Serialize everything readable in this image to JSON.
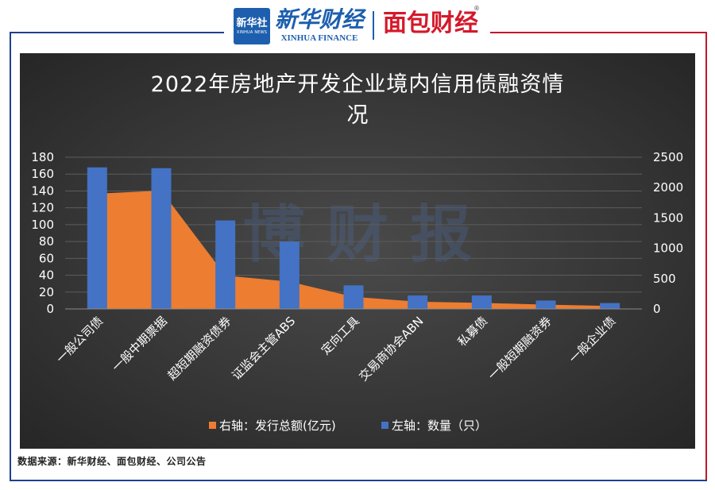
{
  "header": {
    "logo_xinhua": "新华社",
    "logo_xinhua_en": "XINHUA NEWS",
    "brand_cn": "新华财经",
    "brand_en": "XINHUA FINANCE",
    "partner": "面包财经",
    "partner_mark": "®"
  },
  "watermark": "博 财 报",
  "colors": {
    "frame_left": "#1f3f8f",
    "frame_right": "#c0182a",
    "bar": "#4472c4",
    "area": "#ed7d31",
    "panel": "#353535"
  },
  "chart_data": {
    "type": "bar",
    "title_line1": "2022年房地产开发企业境内信用债融资情",
    "title_line2": "况",
    "categories": [
      "一般公司债",
      "一般中期票据",
      "超短期融资债券",
      "证监会主管ABS",
      "定向工具",
      "交易商协会ABN",
      "私募债",
      "一般短期融资券",
      "一般企业债"
    ],
    "series": [
      {
        "name": "左轴：数量（只）",
        "chart": "bar",
        "axis": "left",
        "color": "#4472c4",
        "values": [
          168,
          167,
          105,
          80,
          28,
          16,
          16,
          10,
          7
        ]
      },
      {
        "name": "右轴：发行总额(亿元)",
        "chart": "area",
        "axis": "right",
        "color": "#ed7d31",
        "values": [
          1900,
          1950,
          550,
          450,
          200,
          120,
          100,
          70,
          50
        ]
      }
    ],
    "left_axis": {
      "ylim": [
        0,
        180
      ],
      "ticks": [
        "0",
        "20",
        "40",
        "60",
        "80",
        "100",
        "120",
        "140",
        "160",
        "180"
      ]
    },
    "right_axis": {
      "ylim": [
        0,
        2500
      ],
      "ticks": [
        "0",
        "500",
        "1000",
        "1500",
        "2000",
        "2500"
      ]
    },
    "legend": [
      "右轴：发行总额(亿元)",
      "左轴：数量（只）"
    ],
    "legend_position": "bottom",
    "grid": true
  },
  "source_text": "数据来源：新华财经、面包财经、公司公告"
}
